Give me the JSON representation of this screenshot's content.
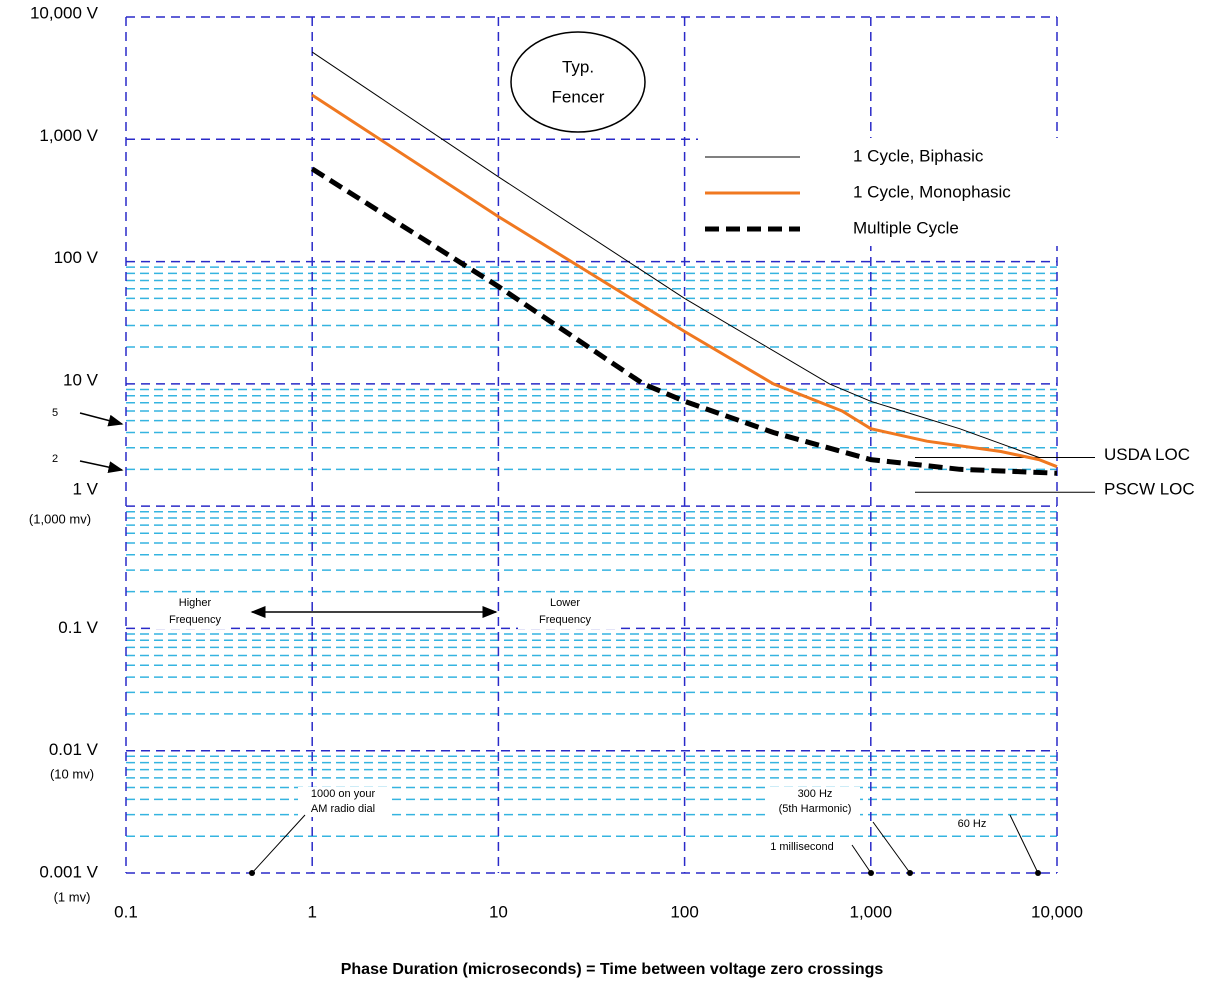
{
  "chart_data": {
    "type": "line",
    "xlabel": "Phase Duration (microseconds) = Time between voltage zero crossings",
    "xscale": "log",
    "yscale": "log",
    "xlim": [
      0.1,
      10000
    ],
    "ylim": [
      0.001,
      10000
    ],
    "xticks": [
      0.1,
      1,
      10,
      100,
      {
        "value": 1000,
        "label": "1,000"
      },
      {
        "value": 10000,
        "label": "10,000"
      }
    ],
    "yticks": [
      {
        "value": 10000,
        "label": "10,000 V"
      },
      {
        "value": 1000,
        "label": "1,000 V"
      },
      {
        "value": 100,
        "label": "100 V"
      },
      {
        "value": 10,
        "label": "10 V"
      },
      {
        "value": 1,
        "label": "1 V"
      },
      {
        "value": 0.1,
        "label": "0.1 V"
      },
      {
        "value": 0.01,
        "label": "0.01 V"
      },
      {
        "value": 0.001,
        "label": "0.001 V"
      }
    ],
    "yminorticks": [
      0.002,
      0.003,
      0.004,
      0.005,
      0.006,
      0.007,
      0.008,
      0.009,
      0.02,
      0.03,
      0.04,
      0.05,
      0.06,
      0.07,
      0.08,
      0.09,
      0.2,
      0.3,
      0.4,
      0.5,
      0.6,
      0.7,
      0.8,
      0.9,
      2,
      3,
      4,
      5,
      6,
      7,
      8,
      9,
      20,
      30,
      40,
      50,
      60,
      70,
      80,
      90
    ],
    "grid": true,
    "grid_color": "#2a2ac8",
    "minor_grid_color": "#35b4e0",
    "legend": "upper right",
    "series": [
      {
        "name": "1 Cycle, Biphasic",
        "color": "#000000",
        "width": 1,
        "dashed": false,
        "x": [
          1,
          10,
          100,
          600,
          1000,
          3000,
          8000
        ],
        "values": [
          5160,
          493,
          50,
          10,
          7.2,
          4.3,
          2.5
        ]
      },
      {
        "name": "1 Cycle, Monophasic",
        "color": "#f07820",
        "width": 3,
        "dashed": false,
        "x": [
          1,
          10,
          100,
          300,
          700,
          1000,
          2000,
          5000,
          8000,
          10000
        ],
        "values": [
          2300,
          233,
          26.8,
          10,
          6,
          4.3,
          3.4,
          2.8,
          2.4,
          2.1
        ]
      },
      {
        "name": "Multiple Cycle",
        "color": "#000000",
        "width": 5,
        "dashed": true,
        "x": [
          1,
          10,
          60,
          100,
          300,
          1000,
          3000,
          10000
        ],
        "values": [
          573,
          62.5,
          10,
          7.2,
          4,
          2.4,
          2,
          1.86
        ]
      }
    ],
    "reference_lines": [
      {
        "label": "USDA LOC",
        "value": 2.5
      },
      {
        "label": "PSCW LOC",
        "value": 1.3
      }
    ],
    "annotations": {
      "fencer": [
        "Typ.",
        "Fencer"
      ],
      "mv": [
        "(1,000 mv)",
        "(10 mv)",
        "(1 mv)"
      ],
      "five": "5",
      "two": "2",
      "higher": [
        "Higher",
        "Frequency"
      ],
      "lower": [
        "Lower",
        "Frequency"
      ],
      "am": [
        "1000 on your",
        "AM radio dial"
      ],
      "hz300": [
        "300 Hz",
        "(5th Harmonic)"
      ],
      "hz60": "60 Hz",
      "ms": "1 millisecond"
    }
  }
}
